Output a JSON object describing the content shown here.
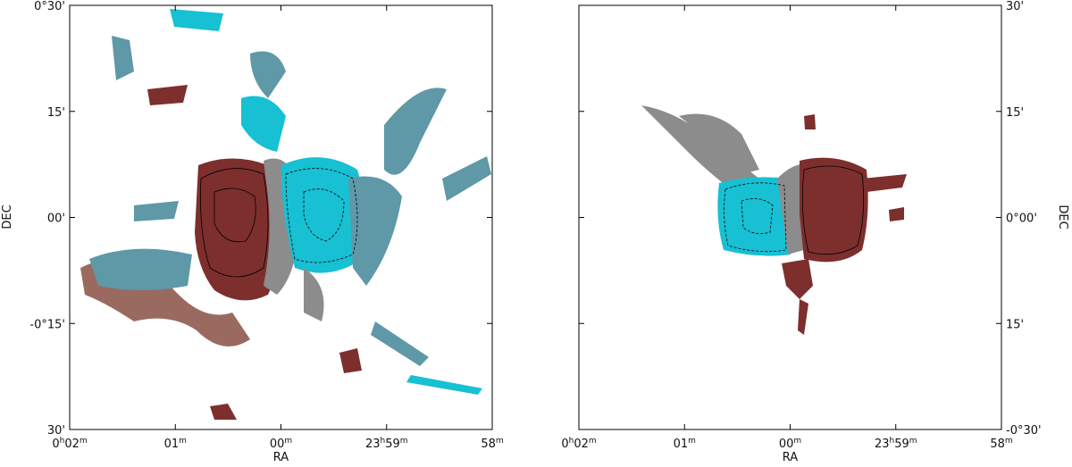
{
  "panels": [
    {
      "xlabel": "RA",
      "ylabel": "DEC",
      "xticks": [
        [
          "0",
          "h",
          "02",
          "m"
        ],
        [
          "01",
          "m"
        ],
        [
          "00",
          "m"
        ],
        [
          "23",
          "h",
          "59",
          "m"
        ],
        [
          "58",
          "m"
        ]
      ],
      "yticks": [
        "0°30'",
        "15'",
        "00'",
        "-0°15'",
        "30'"
      ]
    },
    {
      "xlabel": "RA",
      "ylabel": "DEC",
      "xticks": [
        [
          "0",
          "h",
          "02",
          "m"
        ],
        [
          "01",
          "m"
        ],
        [
          "00",
          "m"
        ],
        [
          "23",
          "h",
          "59",
          "m"
        ],
        [
          "58",
          "m"
        ]
      ],
      "yticks": [
        "30'",
        "15'",
        "0°00'",
        "15'",
        "-0°30'"
      ]
    }
  ]
}
